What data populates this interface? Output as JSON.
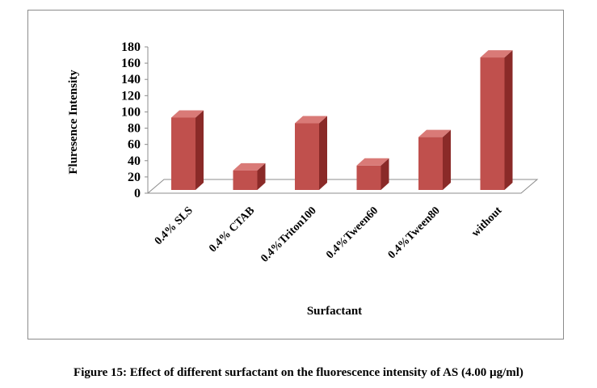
{
  "caption": "Figure 15: Effect of different surfactant on the fluorescence intensity of AS (4.00 µg/ml)",
  "chart_data": {
    "type": "bar",
    "style": "3d-column",
    "categories": [
      "0.4% SLS",
      "0.4% CTAB",
      "0.4%Triton100",
      "0.4%Tween60",
      "0.4%Tween80",
      "without"
    ],
    "values": [
      93,
      28,
      86,
      34,
      69,
      167
    ],
    "xlabel": "Surfactant",
    "ylabel": "Fluresence Intensity",
    "ylim": [
      0,
      180
    ],
    "yticks": [
      0,
      20,
      40,
      60,
      80,
      100,
      120,
      140,
      160,
      180
    ],
    "grid": false,
    "legend": "none",
    "colors": {
      "bar_front": "#c0504d",
      "bar_side": "#8a2a28",
      "bar_top": "#d97a77",
      "axis": "#8c8c8c",
      "frame": "#8c8c8c"
    }
  }
}
